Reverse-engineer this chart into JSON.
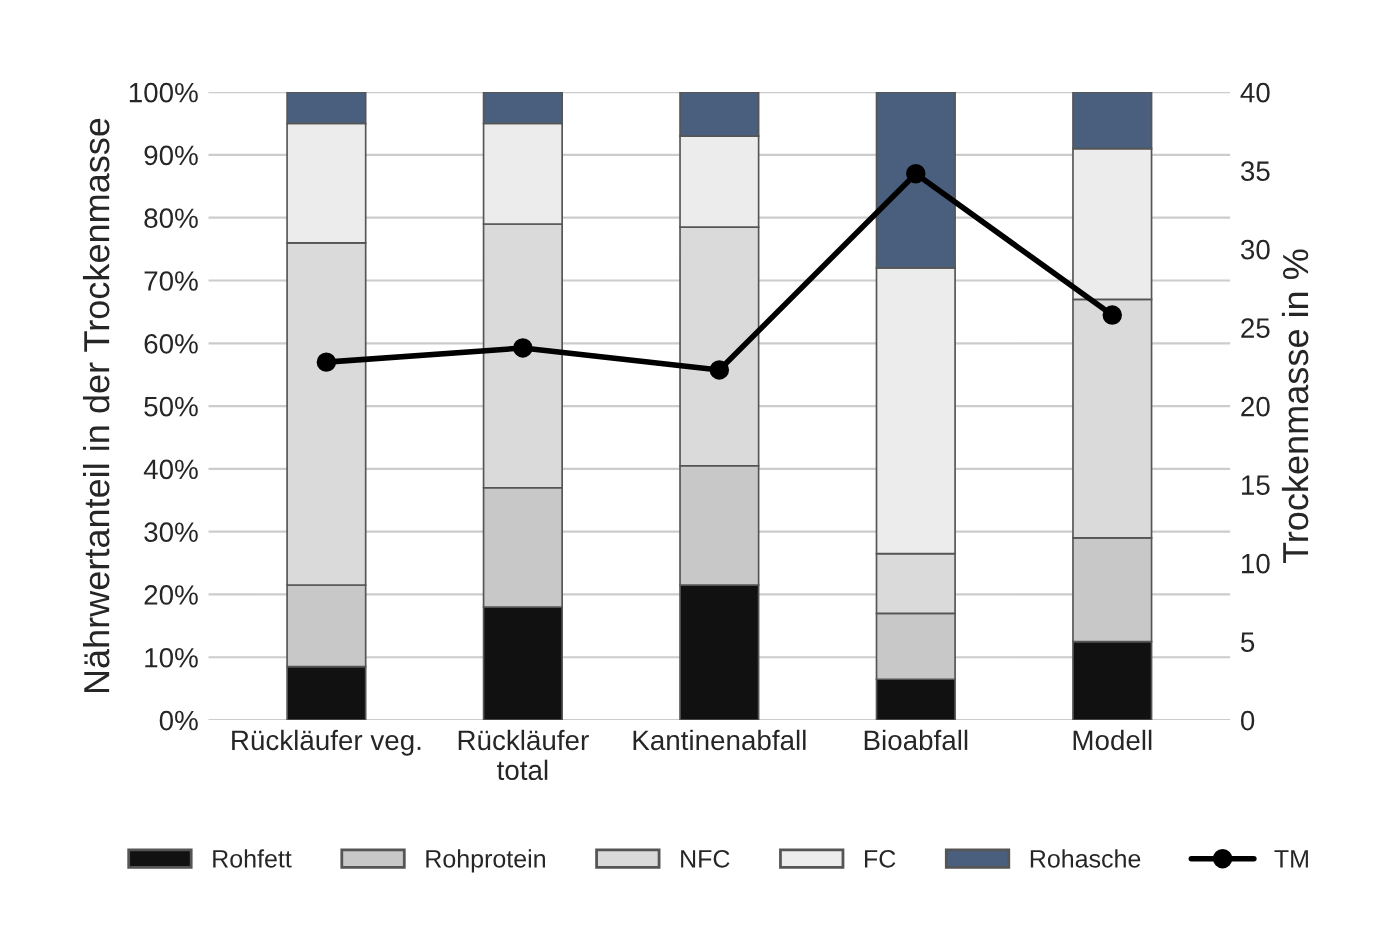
{
  "chart_data": {
    "type": "bar",
    "stacked": true,
    "categories": [
      "Rückläufer veg.",
      "Rückläufer\ntotal",
      "Kantinenabfall",
      "Bioabfall",
      "Modell"
    ],
    "ylabel": "Nährwertanteil in der Trockenmasse",
    "y2label": "Trockenmasse in %",
    "series": [
      {
        "name": "Rohfett",
        "color": "#111111",
        "values": [
          8.5,
          18,
          21.5,
          6.5,
          12.5
        ]
      },
      {
        "name": "Rohprotein",
        "color": "#c8c8c8",
        "values": [
          13,
          19,
          19,
          10.5,
          16.5
        ]
      },
      {
        "name": "NFC",
        "color": "#dadada",
        "values": [
          54.5,
          42,
          38,
          9.5,
          38
        ]
      },
      {
        "name": "FC",
        "color": "#ececec",
        "values": [
          19,
          16,
          14.5,
          45.5,
          24
        ]
      },
      {
        "name": "Rohasche",
        "color": "#4a5f7e",
        "values": [
          5,
          5,
          7,
          28,
          9
        ]
      },
      {
        "name": "TM",
        "type": "line",
        "axis": "y2",
        "color": "#000000",
        "marker": "circle",
        "values": [
          22.8,
          23.7,
          22.3,
          34.8,
          25.8
        ]
      }
    ],
    "ylim": [
      0,
      100
    ],
    "yticks": [
      {
        "value": 0,
        "label": "0%"
      },
      {
        "value": 10,
        "label": "10%"
      },
      {
        "value": 20,
        "label": "20%"
      },
      {
        "value": 30,
        "label": "30%"
      },
      {
        "value": 40,
        "label": "40%"
      },
      {
        "value": 50,
        "label": "50%"
      },
      {
        "value": 60,
        "label": "60%"
      },
      {
        "value": 70,
        "label": "70%"
      },
      {
        "value": 80,
        "label": "80%"
      },
      {
        "value": 90,
        "label": "90%"
      },
      {
        "value": 100,
        "label": "100%"
      }
    ],
    "y2lim": [
      0,
      40
    ],
    "y2ticks": [
      0,
      5,
      10,
      15,
      20,
      25,
      30,
      35,
      40
    ],
    "grid": "y",
    "legend": "bottom"
  }
}
